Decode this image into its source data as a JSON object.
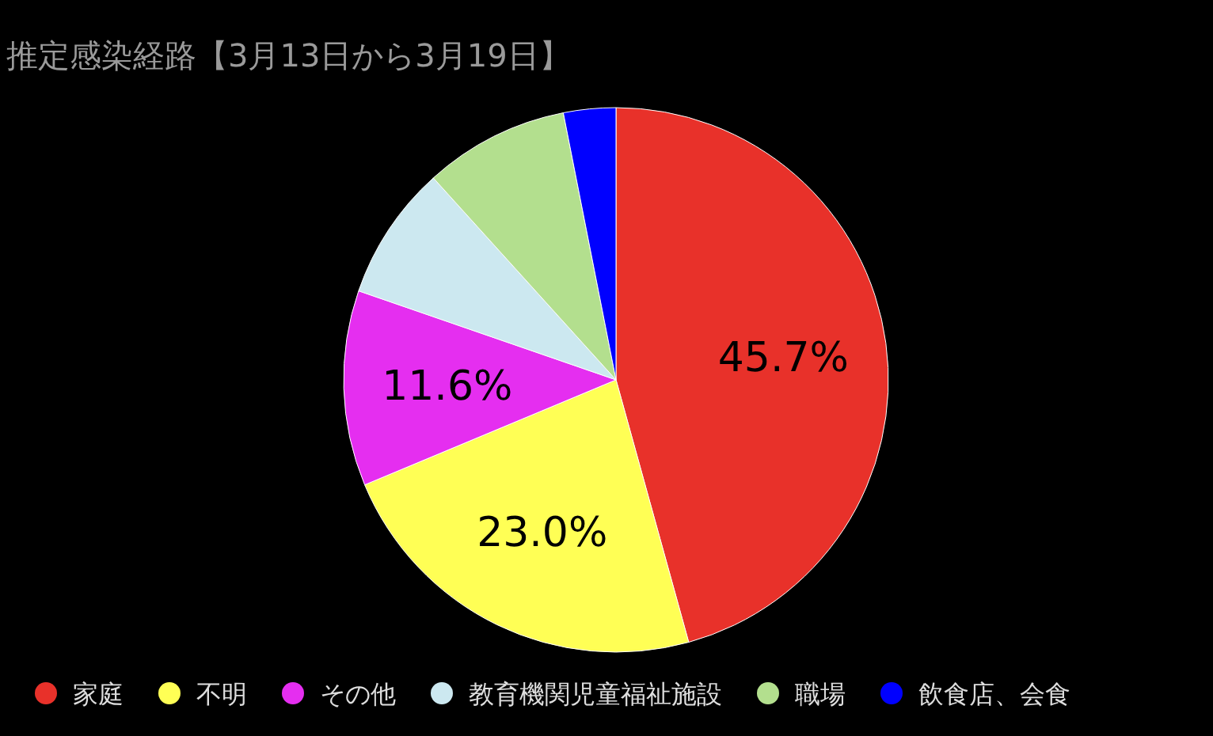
{
  "chart_data": {
    "type": "pie",
    "title": "推定感染経路【3月13日から3月19日】",
    "categories": [
      "家庭",
      "不明",
      "その他",
      "教育機関児童福祉施設",
      "職場",
      "飲食店、会食"
    ],
    "values": [
      45.7,
      23.0,
      11.6,
      8.0,
      8.6,
      3.1
    ],
    "colors": [
      "#e8312a",
      "#ffff55",
      "#e52ef0",
      "#cce8f0",
      "#b3df8e",
      "#0000ff"
    ],
    "value_labels": [
      "45.7%",
      "23.0%",
      "11.6%",
      null,
      null,
      null
    ],
    "legend": "bottom"
  }
}
